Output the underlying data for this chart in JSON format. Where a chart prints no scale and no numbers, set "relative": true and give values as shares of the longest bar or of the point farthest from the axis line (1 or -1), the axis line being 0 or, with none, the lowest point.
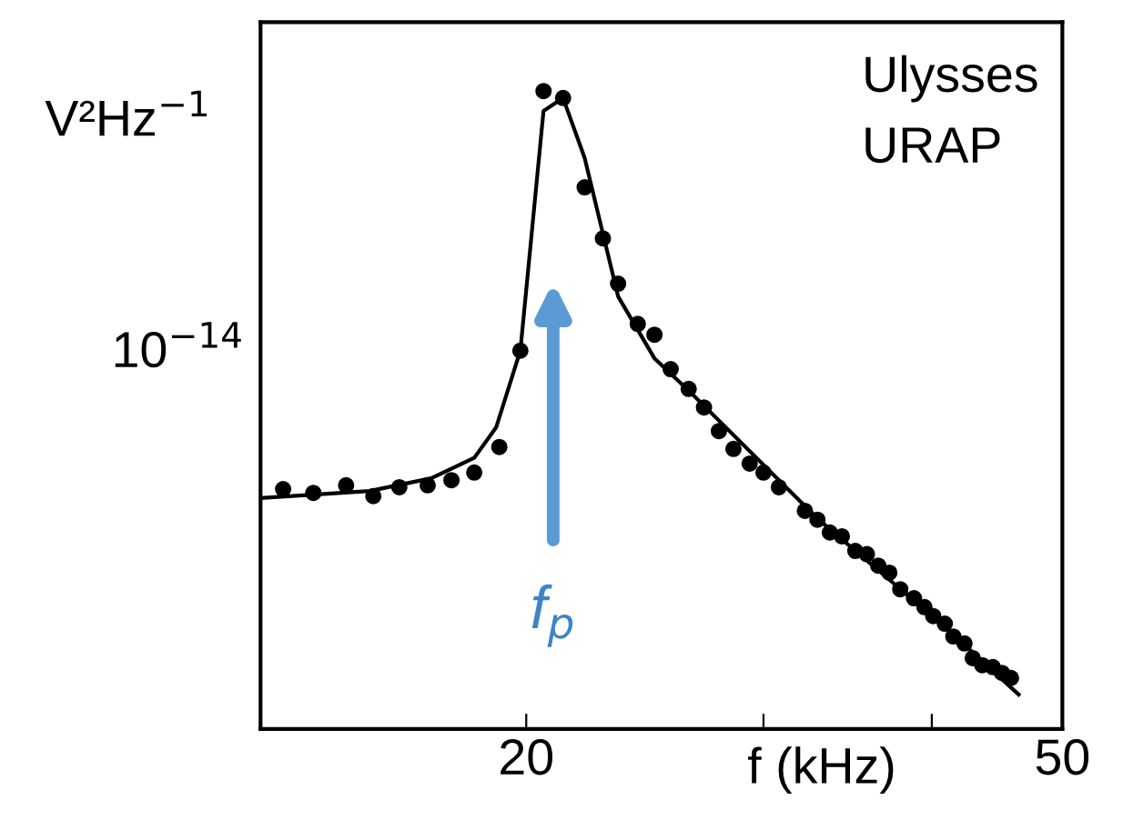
{
  "chart_data": {
    "type": "line",
    "relative": true,
    "log": "x",
    "xlabel": "f (kHz)",
    "ylabel": "V²Hz$^{−1}$",
    "xlim": [
      12.7,
      50
    ],
    "xticks": [
      20,
      {
        "value": 30,
        "label": null
      },
      {
        "value": 40,
        "label": null
      },
      50
    ],
    "grid": false,
    "legend": false,
    "annotations": [
      "Ulysses",
      "URAP",
      "10$^{−14}$",
      "f$_{p}$"
    ],
    "series": [
      {
        "type": "scatter",
        "marker": "circle",
        "color": "#000000",
        "x": [
          13.2,
          13.9,
          14.7,
          15.4,
          16.1,
          16.9,
          17.6,
          18.3,
          19.1,
          19.8,
          20.6,
          21.3,
          22.1,
          22.8,
          23.4,
          24.2,
          24.9,
          25.6,
          26.4,
          27.1,
          27.8,
          28.5,
          29.3,
          30.0,
          30.8,
          32.2,
          32.9,
          33.6,
          34.3,
          35.1,
          35.8,
          36.5,
          37.2,
          37.9,
          38.8,
          39.5,
          40.1,
          40.9,
          41.5,
          42.3,
          42.9,
          43.6,
          44.4,
          45.1,
          45.8
        ],
        "values": [
          0.376,
          0.37,
          0.382,
          0.365,
          0.379,
          0.382,
          0.39,
          0.402,
          0.442,
          0.593,
          1.0,
          0.989,
          0.849,
          0.769,
          0.698,
          0.635,
          0.618,
          0.564,
          0.533,
          0.504,
          0.467,
          0.439,
          0.416,
          0.402,
          0.379,
          0.342,
          0.328,
          0.308,
          0.302,
          0.279,
          0.274,
          0.256,
          0.245,
          0.219,
          0.205,
          0.191,
          0.177,
          0.165,
          0.145,
          0.134,
          0.111,
          0.1,
          0.097,
          0.088,
          0.08
        ]
      },
      {
        "marker": "none",
        "line_style": "solid",
        "color": "#000000",
        "x": [
          12.7,
          15.3,
          17.0,
          18.3,
          19.0,
          19.8,
          20.6,
          21.3,
          22.1,
          23.4,
          24.9,
          26.5,
          32.9,
          40.9,
          46.4
        ],
        "values": [
          0.362,
          0.373,
          0.393,
          0.425,
          0.473,
          0.593,
          0.969,
          0.989,
          0.895,
          0.678,
          0.581,
          0.527,
          0.33,
          0.16,
          0.054
        ]
      }
    ]
  }
}
